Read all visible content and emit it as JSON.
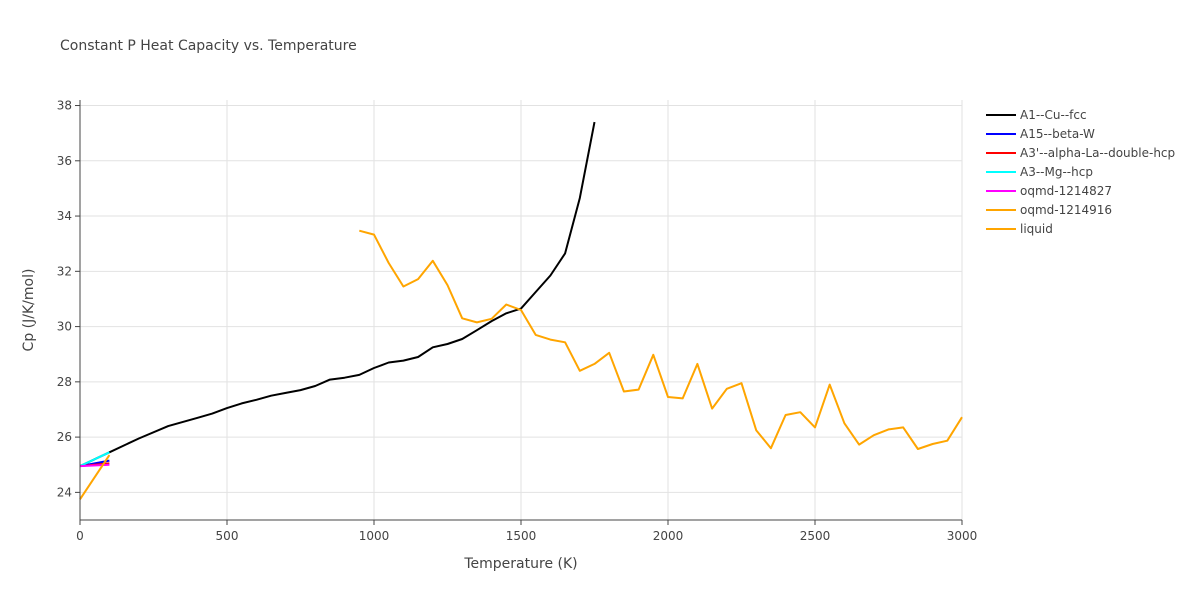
{
  "chart_data": {
    "type": "line",
    "title": "Constant P Heat Capacity vs. Temperature",
    "xlabel": "Temperature (K)",
    "ylabel": "Cp (J/K/mol)",
    "xlim": [
      0,
      3000
    ],
    "ylim": [
      23,
      38.2
    ],
    "xticks": [
      0,
      500,
      1000,
      1500,
      2000,
      2500,
      3000
    ],
    "yticks": [
      24,
      26,
      28,
      30,
      32,
      34,
      36,
      38
    ],
    "grid": true,
    "legend_position": "right",
    "series": [
      {
        "name": "A1--Cu--fcc",
        "color": "#000000",
        "x": [
          0,
          100,
          200,
          300,
          400,
          450,
          500,
          550,
          600,
          650,
          700,
          750,
          800,
          850,
          900,
          950,
          1000,
          1050,
          1100,
          1150,
          1200,
          1250,
          1300,
          1350,
          1400,
          1450,
          1500,
          1550,
          1600,
          1650,
          1700,
          1750
        ],
        "y": [
          24.95,
          25.45,
          25.95,
          26.4,
          26.7,
          26.85,
          27.05,
          27.22,
          27.35,
          27.5,
          27.6,
          27.7,
          27.85,
          28.08,
          28.15,
          28.25,
          28.5,
          28.7,
          28.77,
          28.9,
          29.25,
          29.37,
          29.55,
          29.87,
          30.2,
          30.48,
          30.65,
          31.25,
          31.85,
          32.65,
          34.65,
          37.4
        ]
      },
      {
        "name": "A15--beta-W",
        "color": "#0000ff",
        "x": [
          0,
          100
        ],
        "y": [
          24.95,
          25.15
        ]
      },
      {
        "name": "A3'--alpha-La--double-hcp",
        "color": "#ff0000",
        "x": [
          0,
          100
        ],
        "y": [
          24.95,
          25.05
        ]
      },
      {
        "name": "A3--Mg--hcp",
        "color": "#00ffff",
        "x": [
          0,
          100
        ],
        "y": [
          24.95,
          25.45
        ]
      },
      {
        "name": "oqmd-1214827",
        "color": "#ff00ff",
        "x": [
          0,
          100
        ],
        "y": [
          24.95,
          25.0
        ]
      },
      {
        "name": "oqmd-1214916",
        "color": "#ffa500",
        "x": [
          0,
          100
        ],
        "y": [
          23.75,
          25.35
        ]
      },
      {
        "name": "liquid",
        "color": "#ffa500",
        "x": [
          950,
          1000,
          1050,
          1100,
          1150,
          1200,
          1250,
          1300,
          1350,
          1400,
          1450,
          1500,
          1550,
          1600,
          1650,
          1700,
          1750,
          1800,
          1850,
          1900,
          1950,
          2000,
          2050,
          2100,
          2150,
          2200,
          2250,
          2300,
          2350,
          2400,
          2450,
          2500,
          2550,
          2600,
          2650,
          2700,
          2750,
          2800,
          2850,
          2900,
          2950,
          3000
        ],
        "y": [
          33.47,
          33.33,
          32.3,
          31.45,
          31.72,
          32.38,
          31.5,
          30.3,
          30.15,
          30.28,
          30.8,
          30.6,
          29.7,
          29.53,
          29.43,
          28.4,
          28.65,
          29.05,
          27.65,
          27.72,
          28.98,
          27.45,
          27.4,
          28.65,
          27.03,
          27.75,
          27.95,
          26.25,
          25.6,
          26.8,
          26.9,
          26.35,
          27.9,
          26.5,
          25.73,
          26.07,
          26.28,
          26.35,
          25.57,
          25.75,
          25.87,
          26.72
        ]
      }
    ]
  }
}
